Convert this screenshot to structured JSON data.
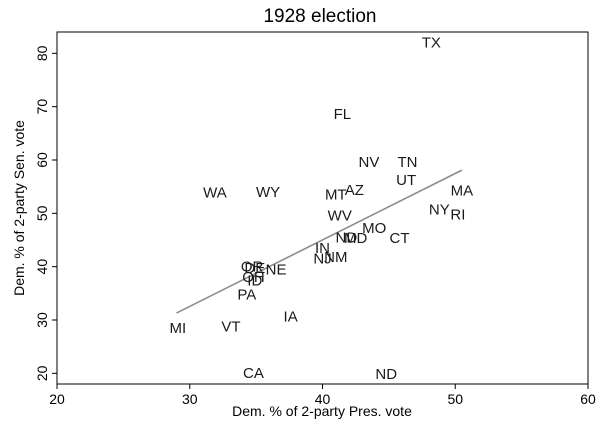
{
  "chart_data": {
    "type": "scatter",
    "title": "1928 election",
    "xlabel": "Dem. % of 2-party Pres. vote",
    "ylabel": "Dem. % of 2-party Sen. vote",
    "xlim": [
      20,
      60
    ],
    "ylim": [
      18,
      84
    ],
    "xticks": [
      20,
      30,
      40,
      50,
      60
    ],
    "yticks": [
      20,
      30,
      40,
      50,
      60,
      70,
      80
    ],
    "grid": false,
    "legend": "none",
    "marker": "state-label",
    "points": [
      {
        "label": "TX",
        "x": 48.2,
        "y": 81.9
      },
      {
        "label": "FL",
        "x": 41.5,
        "y": 68.5
      },
      {
        "label": "NV",
        "x": 43.5,
        "y": 59.5
      },
      {
        "label": "TN",
        "x": 46.4,
        "y": 59.5
      },
      {
        "label": "UT",
        "x": 46.3,
        "y": 56.2
      },
      {
        "label": "MA",
        "x": 50.5,
        "y": 54.2
      },
      {
        "label": "WA",
        "x": 31.9,
        "y": 53.8
      },
      {
        "label": "WY",
        "x": 35.9,
        "y": 53.9
      },
      {
        "label": "AZ",
        "x": 42.4,
        "y": 54.3
      },
      {
        "label": "MT",
        "x": 41.0,
        "y": 53.4
      },
      {
        "label": "NY",
        "x": 48.8,
        "y": 50.6
      },
      {
        "label": "RI",
        "x": 50.2,
        "y": 49.7
      },
      {
        "label": "WV",
        "x": 41.3,
        "y": 49.5
      },
      {
        "label": "MO",
        "x": 43.9,
        "y": 47.2
      },
      {
        "label": "CT",
        "x": 45.8,
        "y": 45.3
      },
      {
        "label": "MD",
        "x": 42.5,
        "y": 45.3
      },
      {
        "label": "ND",
        "x": 41.8,
        "y": 45.4
      },
      {
        "label": "IN",
        "x": 40.0,
        "y": 43.4
      },
      {
        "label": "NM",
        "x": 41.0,
        "y": 41.7
      },
      {
        "label": "NJ",
        "x": 40.0,
        "y": 41.4
      },
      {
        "label": "OR",
        "x": 34.7,
        "y": 39.9
      },
      {
        "label": "DE",
        "x": 34.9,
        "y": 39.7
      },
      {
        "label": "NE",
        "x": 36.5,
        "y": 39.4
      },
      {
        "label": "OH",
        "x": 34.8,
        "y": 38.0
      },
      {
        "label": "ID",
        "x": 34.9,
        "y": 37.3
      },
      {
        "label": "PA",
        "x": 34.3,
        "y": 34.7
      },
      {
        "label": "IA",
        "x": 37.6,
        "y": 30.6
      },
      {
        "label": "VT",
        "x": 33.1,
        "y": 28.7
      },
      {
        "label": "MI",
        "x": 29.1,
        "y": 28.4
      },
      {
        "label": "CA",
        "x": 34.8,
        "y": 20.0
      },
      {
        "label": "ND",
        "x": 44.8,
        "y": 19.8
      }
    ],
    "fit_line": {
      "x": [
        29,
        50.5
      ],
      "y": [
        31.3,
        58.1
      ]
    }
  },
  "colors": {
    "points": "#1a1a1a",
    "fit_line": "#8c8c8c",
    "frame": "#000000"
  }
}
